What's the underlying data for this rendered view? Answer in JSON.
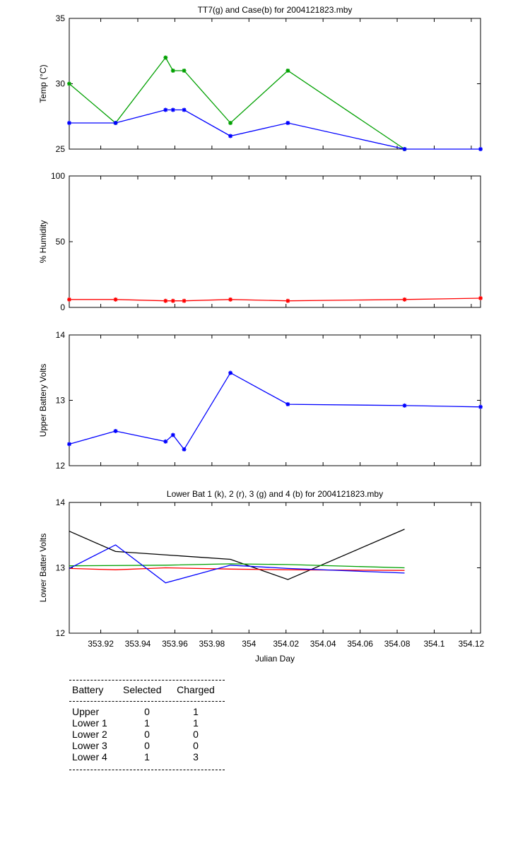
{
  "chart_data": [
    {
      "type": "line",
      "title": "TT7(g) and Case(b) for 2004121823.mby",
      "xlabel": "",
      "ylabel": "Temp  (°C)",
      "xlim": [
        353.903,
        354.125
      ],
      "ylim": [
        25,
        35
      ],
      "yticks": [
        25,
        30,
        35
      ],
      "series": [
        {
          "color": "#00a000",
          "marker": "star",
          "x": [
            353.903,
            353.928,
            353.955,
            353.959,
            353.965,
            353.99,
            354.021,
            354.084
          ],
          "y": [
            30,
            27,
            32,
            31,
            31,
            27,
            31,
            25
          ]
        },
        {
          "color": "#0000ff",
          "marker": "star",
          "x": [
            353.903,
            353.928,
            353.955,
            353.959,
            353.965,
            353.99,
            354.021,
            354.084,
            354.125
          ],
          "y": [
            27,
            27,
            28,
            28,
            28,
            26,
            27,
            25,
            25
          ]
        }
      ]
    },
    {
      "type": "line",
      "title": "",
      "xlabel": "",
      "ylabel": "% Humidity",
      "xlim": [
        353.903,
        354.125
      ],
      "ylim": [
        0,
        100
      ],
      "yticks": [
        0,
        50,
        100
      ],
      "series": [
        {
          "color": "#ff0000",
          "marker": "star",
          "x": [
            353.903,
            353.928,
            353.955,
            353.959,
            353.965,
            353.99,
            354.021,
            354.084,
            354.125
          ],
          "y": [
            6,
            6,
            5,
            5,
            5,
            6,
            5,
            6,
            7
          ]
        }
      ]
    },
    {
      "type": "line",
      "title": "",
      "xlabel": "",
      "ylabel": "Upper Battery Volts",
      "xlim": [
        353.903,
        354.125
      ],
      "ylim": [
        12,
        14
      ],
      "yticks": [
        12,
        13,
        14
      ],
      "series": [
        {
          "color": "#0000ff",
          "marker": "star",
          "x": [
            353.903,
            353.928,
            353.955,
            353.959,
            353.965,
            353.99,
            354.021,
            354.084,
            354.125
          ],
          "y": [
            12.33,
            12.53,
            12.37,
            12.47,
            12.25,
            13.42,
            12.94,
            12.92,
            12.9
          ]
        }
      ]
    },
    {
      "type": "line",
      "title": "Lower Bat 1 (k), 2 (r), 3 (g) and 4 (b) for 2004121823.mby",
      "xlabel": "Julian Day",
      "ylabel": "Lower Batter Volts",
      "xlim": [
        353.903,
        354.125
      ],
      "ylim": [
        12,
        14
      ],
      "yticks": [
        12,
        13,
        14
      ],
      "xticks": [
        353.92,
        353.94,
        353.96,
        353.98,
        354,
        354.02,
        354.04,
        354.06,
        354.08,
        354.1,
        354.12
      ],
      "xtick_labels": [
        "353.92",
        "353.94",
        "353.96",
        "353.98",
        "354",
        "354.02",
        "354.04",
        "354.06",
        "354.08",
        "354.1",
        "354.12"
      ],
      "series": [
        {
          "color": "#000000",
          "marker": "none",
          "x": [
            353.903,
            353.928,
            353.99,
            354.021,
            354.084
          ],
          "y": [
            13.56,
            13.25,
            13.13,
            12.82,
            13.59
          ]
        },
        {
          "color": "#ff0000",
          "marker": "none",
          "x": [
            353.903,
            353.928,
            353.955,
            353.99,
            354.021,
            354.084
          ],
          "y": [
            12.99,
            12.97,
            13.0,
            12.98,
            12.97,
            12.96
          ]
        },
        {
          "color": "#00a000",
          "marker": "none",
          "x": [
            353.903,
            353.955,
            353.99,
            354.021,
            354.084
          ],
          "y": [
            13.03,
            13.04,
            13.06,
            13.05,
            13.0
          ]
        },
        {
          "color": "#0000ff",
          "marker": "none",
          "x": [
            353.903,
            353.928,
            353.955,
            353.99,
            354.021,
            354.084
          ],
          "y": [
            12.99,
            13.35,
            12.77,
            13.04,
            12.99,
            12.92
          ]
        }
      ]
    }
  ],
  "info_table": {
    "headers": [
      "Battery",
      "Selected",
      "Charged"
    ],
    "rows": [
      [
        "Upper",
        "0",
        "1"
      ],
      [
        "Lower 1",
        "1",
        "1"
      ],
      [
        "Lower 2",
        "0",
        "0"
      ],
      [
        "Lower 3",
        "0",
        "0"
      ],
      [
        "Lower 4",
        "1",
        "3"
      ]
    ]
  }
}
